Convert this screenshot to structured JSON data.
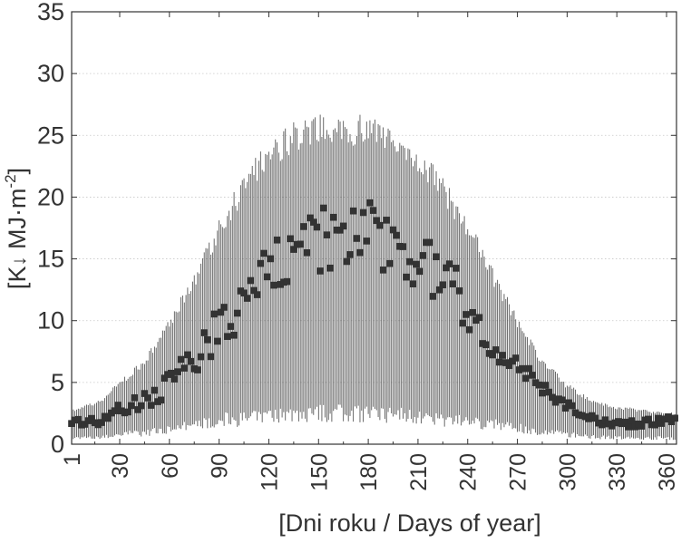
{
  "chart_data": {
    "type": "scatter",
    "title": "",
    "xlabel": "[Dni roku / Days of year]",
    "ylabel": {
      "main": "[K",
      "arrow": "↓",
      "unit": " MJ·m",
      "exp": "-2",
      "close": "]"
    },
    "xlim": [
      1,
      366
    ],
    "ylim": [
      0,
      35
    ],
    "x_ticks": [
      "1",
      "30",
      "60",
      "90",
      "120",
      "150",
      "180",
      "210",
      "240",
      "270",
      "300",
      "330",
      "360"
    ],
    "y_ticks": [
      "0",
      "5",
      "10",
      "15",
      "20",
      "25",
      "30",
      "35"
    ],
    "grid": "horizontal dotted",
    "legend": "none",
    "colors": {
      "marker": "#333333",
      "whisker": "#444444",
      "axis": "#333333",
      "grid": "#c8c8c8"
    },
    "series": [
      {
        "note": "daily mean with min–max range",
        "x": [
          3,
          18,
          30,
          45,
          60,
          75,
          90,
          105,
          120,
          135,
          150,
          165,
          180,
          195,
          210,
          225,
          240,
          255,
          270,
          285,
          300,
          315,
          330,
          345,
          360
        ],
        "mean": [
          1.8,
          1.9,
          2.8,
          3.6,
          4.8,
          6.5,
          9.5,
          11.5,
          14.0,
          15.5,
          16.5,
          16.8,
          17.5,
          16.0,
          15.0,
          13.8,
          11.0,
          8.5,
          6.5,
          4.5,
          3.0,
          2.0,
          1.7,
          1.7,
          2.0
        ],
        "low": [
          0.5,
          0.5,
          0.8,
          0.9,
          1.2,
          1.6,
          2.0,
          2.0,
          2.2,
          2.4,
          2.5,
          2.5,
          2.5,
          2.4,
          2.2,
          2.0,
          1.8,
          1.6,
          1.3,
          1.0,
          0.8,
          0.6,
          0.5,
          0.5,
          0.5
        ],
        "high": [
          2.8,
          3.5,
          5.0,
          6.8,
          9.8,
          13.6,
          17.6,
          21.3,
          24.0,
          25.4,
          26.0,
          26.1,
          25.8,
          25.0,
          23.5,
          21.0,
          17.9,
          13.9,
          10.0,
          6.8,
          4.8,
          3.6,
          3.0,
          2.8,
          2.5
        ]
      }
    ]
  }
}
